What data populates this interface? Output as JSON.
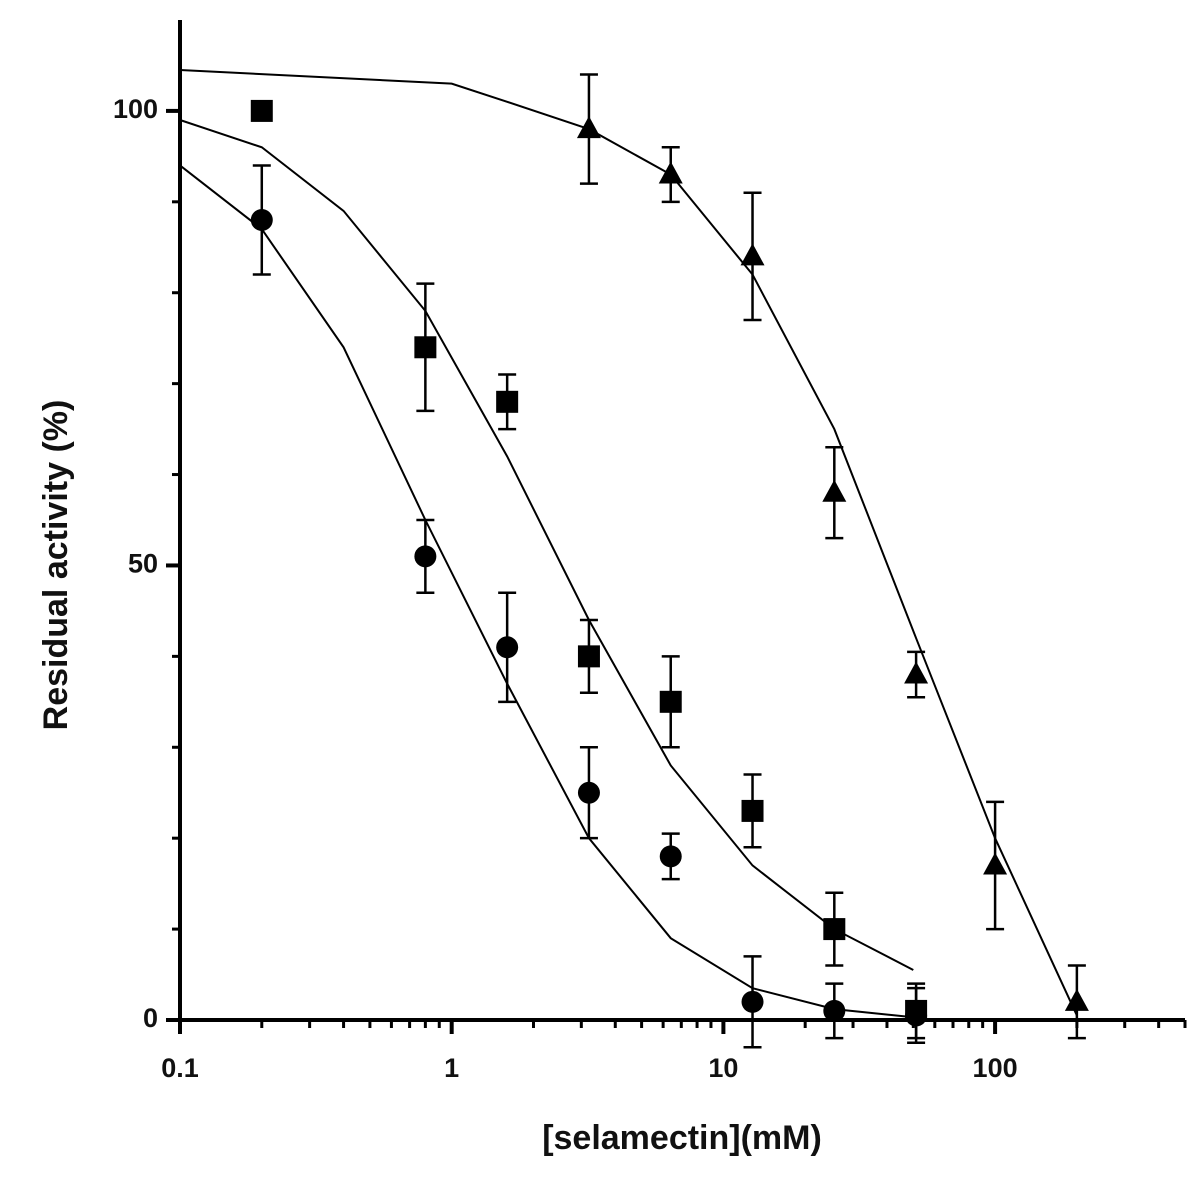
{
  "chart_data": {
    "type": "scatter",
    "x_label": "[selamectin](mM)",
    "y_label": "Residual activity (%)",
    "xscale": "log",
    "xlim": [
      0.1,
      500
    ],
    "ylim": [
      0,
      110
    ],
    "xticks": [
      0.1,
      1,
      10,
      100
    ],
    "xminorticks": [
      0.2,
      0.3,
      0.4,
      0.5,
      0.6,
      0.7,
      0.8,
      0.9,
      2,
      3,
      4,
      5,
      6,
      7,
      8,
      9,
      20,
      30,
      40,
      50,
      60,
      70,
      80,
      90,
      200,
      300,
      400,
      500
    ],
    "yticks": [
      0,
      50,
      100
    ],
    "yminorticks": [
      10,
      20,
      30,
      40,
      60,
      70,
      80,
      90
    ],
    "color": "#000000",
    "series": [
      {
        "marker": "circle",
        "x": [
          0.2,
          0.8,
          1.6,
          3.2,
          6.4,
          12.8,
          25.6,
          51.2
        ],
        "values": [
          88,
          51,
          41,
          25,
          18,
          2,
          1,
          0.5
        ],
        "errors": [
          6,
          4,
          6,
          5,
          2.5,
          5,
          3,
          3
        ],
        "fit_x": [
          0.1,
          0.2,
          0.4,
          0.8,
          1.6,
          3.2,
          6.4,
          12.8,
          25.6,
          50
        ],
        "fit_y": [
          94,
          87,
          74,
          55,
          37,
          20,
          9,
          3.5,
          1.2,
          0.3
        ]
      },
      {
        "marker": "square",
        "x": [
          0.2,
          0.8,
          1.6,
          3.2,
          6.4,
          12.8,
          25.6,
          51.2
        ],
        "values": [
          100,
          74,
          68,
          40,
          35,
          23,
          10,
          1
        ],
        "errors": [
          1,
          7,
          3,
          4,
          5,
          4,
          4,
          3
        ],
        "fit_x": [
          0.1,
          0.2,
          0.4,
          0.8,
          1.6,
          3.2,
          6.4,
          12.8,
          25.6,
          50
        ],
        "fit_y": [
          99,
          96,
          89,
          78,
          62,
          44,
          28,
          17,
          10,
          5.5
        ]
      },
      {
        "marker": "triangle",
        "x": [
          3.2,
          6.4,
          12.8,
          25.6,
          51.2,
          100,
          200
        ],
        "values": [
          98,
          93,
          84,
          58,
          38,
          17,
          2
        ],
        "errors": [
          6,
          3,
          7,
          5,
          2.5,
          7,
          4
        ],
        "fit_x": [
          0.1,
          1,
          1.6,
          3.2,
          6.4,
          12.8,
          25.6,
          51.2,
          100,
          200
        ],
        "fit_y": [
          104.5,
          103,
          101,
          98,
          93,
          82,
          65,
          42,
          20,
          0.5
        ]
      }
    ]
  }
}
